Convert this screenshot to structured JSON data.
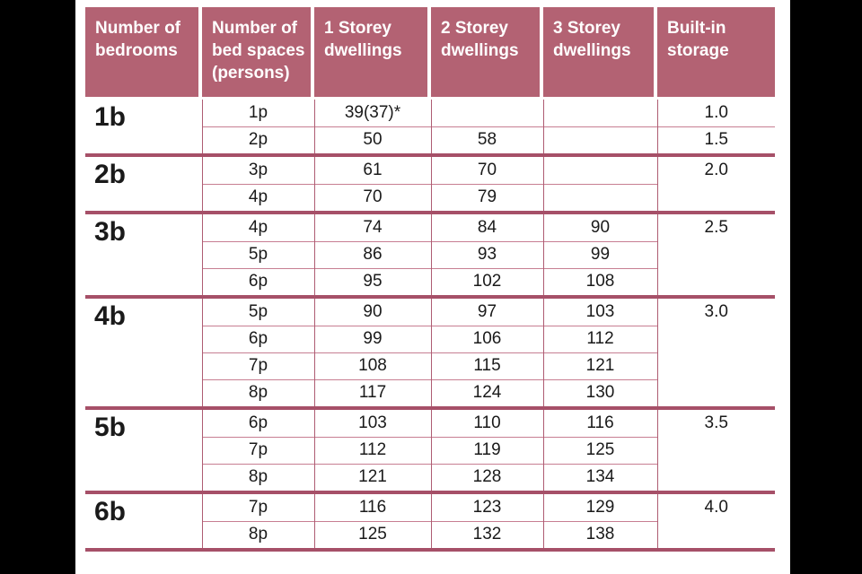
{
  "table": {
    "headers": [
      "Number of bedrooms",
      "Number of bed spaces (persons)",
      "1 Storey dwellings",
      "2 Storey dwellings",
      "3 Storey dwellings",
      "Built-in storage"
    ],
    "groups": [
      {
        "bedrooms": "1b",
        "storage": [
          "1.0",
          "1.5"
        ],
        "rows": [
          {
            "persons": "1p",
            "s1": "39(37)*",
            "s2": "",
            "s3": ""
          },
          {
            "persons": "2p",
            "s1": "50",
            "s2": "58",
            "s3": ""
          }
        ]
      },
      {
        "bedrooms": "2b",
        "storage": [
          "2.0"
        ],
        "rows": [
          {
            "persons": "3p",
            "s1": "61",
            "s2": "70",
            "s3": ""
          },
          {
            "persons": "4p",
            "s1": "70",
            "s2": "79",
            "s3": ""
          }
        ]
      },
      {
        "bedrooms": "3b",
        "storage": [
          "2.5"
        ],
        "rows": [
          {
            "persons": "4p",
            "s1": "74",
            "s2": "84",
            "s3": "90"
          },
          {
            "persons": "5p",
            "s1": "86",
            "s2": "93",
            "s3": "99"
          },
          {
            "persons": "6p",
            "s1": "95",
            "s2": "102",
            "s3": "108"
          }
        ]
      },
      {
        "bedrooms": "4b",
        "storage": [
          "3.0"
        ],
        "rows": [
          {
            "persons": "5p",
            "s1": "90",
            "s2": "97",
            "s3": "103"
          },
          {
            "persons": "6p",
            "s1": "99",
            "s2": "106",
            "s3": "112"
          },
          {
            "persons": "7p",
            "s1": "108",
            "s2": "115",
            "s3": "121"
          },
          {
            "persons": "8p",
            "s1": "117",
            "s2": "124",
            "s3": "130"
          }
        ]
      },
      {
        "bedrooms": "5b",
        "storage": [
          "3.5"
        ],
        "rows": [
          {
            "persons": "6p",
            "s1": "103",
            "s2": "110",
            "s3": "116"
          },
          {
            "persons": "7p",
            "s1": "112",
            "s2": "119",
            "s3": "125"
          },
          {
            "persons": "8p",
            "s1": "121",
            "s2": "128",
            "s3": "134"
          }
        ]
      },
      {
        "bedrooms": "6b",
        "storage": [
          "4.0"
        ],
        "rows": [
          {
            "persons": "7p",
            "s1": "116",
            "s2": "123",
            "s3": "129"
          },
          {
            "persons": "8p",
            "s1": "125",
            "s2": "132",
            "s3": "138"
          }
        ]
      }
    ],
    "colors": {
      "header_bg": "#b36273",
      "thick_line": "#a65068",
      "thin_line": "#c77e92",
      "vertical_line": "#ae5c72",
      "page_bg": "#000000",
      "sheet_bg": "#ffffff",
      "header_text": "#ffffff",
      "body_text": "#1a1a1a"
    }
  }
}
